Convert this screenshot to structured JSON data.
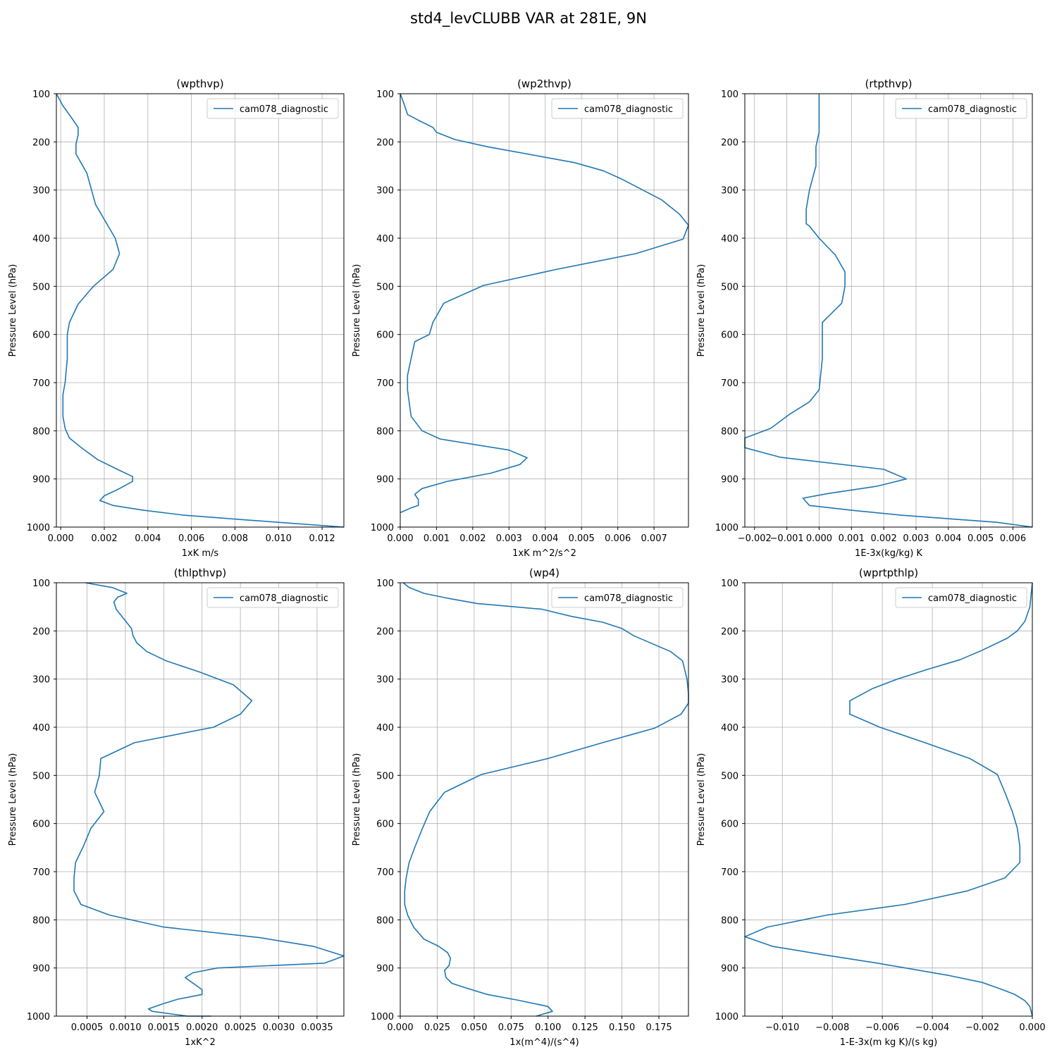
{
  "figure_title": "std4_levCLUBB VAR at 281E, 9N",
  "colors": {
    "series": "#1f77b4",
    "grid": "#b0b0b0",
    "axes": "#000000"
  },
  "chart_data": [
    {
      "type": "line",
      "title": "(wpthvp)",
      "xlabel": "1xK m/s",
      "ylabel": "Pressure Level (hPa)",
      "xlim": [
        -0.0002,
        0.013
      ],
      "ylim": [
        1000,
        100
      ],
      "y_inverted": true,
      "xticks": [
        0,
        0.002,
        0.004,
        0.006,
        0.008,
        0.01,
        0.012
      ],
      "xtick_labels": [
        "0.000",
        "0.002",
        "0.004",
        "0.006",
        "0.008",
        "0.010",
        "0.012"
      ],
      "yticks": [
        100,
        200,
        300,
        400,
        500,
        600,
        700,
        800,
        900,
        1000
      ],
      "ytick_labels": [
        "100",
        "200",
        "300",
        "400",
        "500",
        "600",
        "700",
        "800",
        "900",
        "1000"
      ],
      "grid": true,
      "legend_position": "upper right",
      "series": [
        {
          "name": "cam078_diagnostic",
          "x": [
            -0.0002,
            0.0001,
            0.0005,
            0.0008,
            0.0008,
            0.0007,
            0.0007,
            0.0012,
            0.0016,
            0.0025,
            0.0027,
            0.0024,
            0.0015,
            0.0008,
            0.0004,
            0.0003,
            0.0003,
            0.0002,
            0.0001,
            0.0001,
            0.0002,
            0.0004,
            0.001,
            0.0017,
            0.0026,
            0.0033,
            0.0033,
            0.0027,
            0.002,
            0.0018,
            0.0024,
            0.0038,
            0.0056,
            0.0085,
            0.013
          ],
          "y": [
            100,
            125,
            150,
            170,
            185,
            205,
            225,
            265,
            330,
            400,
            432,
            465,
            500,
            537,
            575,
            600,
            650,
            700,
            725,
            770,
            795,
            815,
            837,
            860,
            880,
            895,
            905,
            920,
            935,
            945,
            955,
            965,
            975,
            985,
            1000
          ]
        }
      ]
    },
    {
      "type": "line",
      "title": "(wp2thvp)",
      "xlabel": "1xK m^2/s^2",
      "ylabel": "Pressure Level (hPa)",
      "xlim": [
        0,
        0.00795
      ],
      "ylim": [
        1000,
        100
      ],
      "y_inverted": true,
      "xticks": [
        0,
        0.001,
        0.002,
        0.003,
        0.004,
        0.005,
        0.006,
        0.007
      ],
      "xtick_labels": [
        "0.000",
        "0.001",
        "0.002",
        "0.003",
        "0.004",
        "0.005",
        "0.006",
        "0.007"
      ],
      "yticks": [
        100,
        200,
        300,
        400,
        500,
        600,
        700,
        800,
        900,
        1000
      ],
      "ytick_labels": [
        "100",
        "200",
        "300",
        "400",
        "500",
        "600",
        "700",
        "800",
        "900",
        "1000"
      ],
      "grid": true,
      "legend_position": "upper right",
      "series": [
        {
          "name": "cam078_diagnostic",
          "x": [
            0,
            0.0001,
            0.0002,
            0.0005,
            0.0009,
            0.001,
            0.0015,
            0.0024,
            0.0048,
            0.0056,
            0.0061,
            0.0072,
            0.0077,
            0.00795,
            0.0078,
            0.0065,
            0.0043,
            0.0023,
            0.0012,
            0.0009,
            0.0008,
            0.0004,
            0.0003,
            0.0002,
            0.0002,
            0.0003,
            0.0006,
            0.0011,
            0.003,
            0.0035,
            0.0033,
            0.0025,
            0.0013,
            0.0006,
            0.0004,
            0.0005,
            0.0005,
            0.0003,
            0
          ],
          "y": [
            100,
            120,
            143,
            155,
            170,
            180,
            195,
            210,
            243,
            260,
            277,
            320,
            350,
            373,
            402,
            432,
            465,
            498,
            535,
            575,
            600,
            615,
            650,
            685,
            715,
            770,
            800,
            817,
            840,
            856,
            870,
            888,
            905,
            920,
            932,
            943,
            955,
            960,
            970
          ]
        }
      ]
    },
    {
      "type": "line",
      "title": "(rtpthvp)",
      "xlabel": "1E-3x(kg/kg) K",
      "ylabel": "Pressure Level (hPa)",
      "xlim": [
        -0.0023,
        0.0066
      ],
      "ylim": [
        1000,
        100
      ],
      "y_inverted": true,
      "xticks": [
        -0.002,
        -0.001,
        0,
        0.001,
        0.002,
        0.003,
        0.004,
        0.005,
        0.006
      ],
      "xtick_labels": [
        "−0.002",
        "−0.001",
        "0.000",
        "0.001",
        "0.002",
        "0.003",
        "0.004",
        "0.005",
        "0.006"
      ],
      "yticks": [
        100,
        200,
        300,
        400,
        500,
        600,
        700,
        800,
        900,
        1000
      ],
      "ytick_labels": [
        "100",
        "200",
        "300",
        "400",
        "500",
        "600",
        "700",
        "800",
        "900",
        "1000"
      ],
      "grid": true,
      "legend_position": "upper right",
      "series": [
        {
          "name": "cam078_diagnostic",
          "x": [
            0.0,
            0.0,
            0.0,
            -0.0001,
            -0.0001,
            -0.0003,
            -0.0004,
            -0.0004,
            -0.0003,
            0.0,
            0.0005,
            0.0008,
            0.0008,
            0.0007,
            0.0001,
            0.0001,
            0.0,
            -0.0003,
            -0.0009,
            -0.0015,
            -0.0023,
            -0.0023,
            -0.0012,
            0.002,
            0.0027,
            0.0018,
            0.0003,
            -0.0005,
            -0.0003,
            0.001,
            0.0025,
            0.0045,
            0.0055,
            0.0066
          ],
          "y": [
            100,
            140,
            180,
            210,
            250,
            300,
            340,
            370,
            375,
            400,
            435,
            470,
            500,
            535,
            575,
            650,
            715,
            740,
            765,
            795,
            815,
            835,
            855,
            880,
            900,
            915,
            930,
            940,
            955,
            965,
            975,
            985,
            990,
            1000
          ]
        }
      ]
    },
    {
      "type": "line",
      "title": "(thlpthvp)",
      "xlabel": "1xK^2",
      "ylabel": "Pressure Level (hPa)",
      "xlim": [
        0.0001,
        0.00385
      ],
      "ylim": [
        1000,
        100
      ],
      "y_inverted": true,
      "xticks": [
        0.0005,
        0.001,
        0.0015,
        0.002,
        0.0025,
        0.003,
        0.0035
      ],
      "xtick_labels": [
        "0.0005",
        "0.0010",
        "0.0015",
        "0.0020",
        "0.0025",
        "0.0030",
        "0.0035"
      ],
      "yticks": [
        100,
        200,
        300,
        400,
        500,
        600,
        700,
        800,
        900,
        1000
      ],
      "ytick_labels": [
        "100",
        "200",
        "300",
        "400",
        "500",
        "600",
        "700",
        "800",
        "900",
        "1000"
      ],
      "grid": true,
      "legend_position": "upper right",
      "series": [
        {
          "name": "cam078_diagnostic",
          "x": [
            0.00048,
            0.00083,
            0.00102,
            0.0009,
            0.00085,
            0.00088,
            0.00098,
            0.00108,
            0.0011,
            0.00115,
            0.00128,
            0.00153,
            0.00196,
            0.00241,
            0.00265,
            0.0025,
            0.00215,
            0.00112,
            0.00068,
            0.00066,
            0.0006,
            0.00072,
            0.00055,
            0.00045,
            0.00035,
            0.00033,
            0.00033,
            0.00042,
            0.00079,
            0.0015,
            0.00275,
            0.00345,
            0.00385,
            0.0036,
            0.0022,
            0.00188,
            0.00178,
            0.002,
            0.002,
            0.00168,
            0.00148,
            0.0013,
            0.00135,
            0.00181,
            0.00212
          ],
          "y": [
            100,
            110,
            122,
            130,
            140,
            155,
            175,
            195,
            210,
            225,
            243,
            262,
            285,
            312,
            345,
            373,
            400,
            432,
            465,
            500,
            535,
            575,
            610,
            648,
            681,
            713,
            740,
            768,
            790,
            815,
            837,
            855,
            875,
            890,
            900,
            910,
            920,
            945,
            955,
            965,
            975,
            985,
            990,
            1000,
            1000
          ]
        }
      ]
    },
    {
      "type": "line",
      "title": "(wp4)",
      "xlabel": "1x(m^4)/(s^4)",
      "ylabel": "Pressure Level (hPa)",
      "xlim": [
        0,
        0.195
      ],
      "ylim": [
        1000,
        100
      ],
      "y_inverted": true,
      "xticks": [
        0,
        0.025,
        0.05,
        0.075,
        0.1,
        0.125,
        0.15,
        0.175
      ],
      "xtick_labels": [
        "0.000",
        "0.025",
        "0.050",
        "0.075",
        "0.100",
        "0.125",
        "0.150",
        "0.175"
      ],
      "yticks": [
        100,
        200,
        300,
        400,
        500,
        600,
        700,
        800,
        900,
        1000
      ],
      "ytick_labels": [
        "100",
        "200",
        "300",
        "400",
        "500",
        "600",
        "700",
        "800",
        "900",
        "1000"
      ],
      "grid": true,
      "legend_position": "upper right",
      "series": [
        {
          "name": "cam078_diagnostic",
          "x": [
            0.002,
            0.006,
            0.016,
            0.032,
            0.052,
            0.096,
            0.116,
            0.137,
            0.15,
            0.158,
            0.183,
            0.191,
            0.194,
            0.195,
            0.195,
            0.19,
            0.172,
            0.137,
            0.1,
            0.055,
            0.03,
            0.02,
            0.015,
            0.01,
            0.006,
            0.004,
            0.003,
            0.003,
            0.005,
            0.009,
            0.016,
            0.026,
            0.032,
            0.034,
            0.033,
            0.03,
            0.031,
            0.035,
            0.045,
            0.059,
            0.08,
            0.1,
            0.103,
            0.092
          ],
          "y": [
            100,
            110,
            122,
            132,
            143,
            155,
            170,
            182,
            195,
            210,
            243,
            262,
            300,
            330,
            350,
            373,
            402,
            432,
            465,
            498,
            535,
            575,
            610,
            648,
            681,
            713,
            740,
            768,
            790,
            815,
            840,
            855,
            868,
            880,
            895,
            905,
            920,
            932,
            942,
            955,
            967,
            980,
            990,
            1000
          ]
        }
      ]
    },
    {
      "type": "line",
      "title": "(wprtpthlp)",
      "xlabel": "1-E-3x(m kg K)/(s kg)",
      "ylabel": "Pressure Level (hPa)",
      "xlim": [
        -0.0115,
        0
      ],
      "ylim": [
        1000,
        100
      ],
      "y_inverted": true,
      "xticks": [
        -0.01,
        -0.008,
        -0.006,
        -0.004,
        -0.002,
        0
      ],
      "xtick_labels": [
        "−0.010",
        "−0.008",
        "−0.006",
        "−0.004",
        "−0.002",
        "0.000"
      ],
      "yticks": [
        100,
        200,
        300,
        400,
        500,
        600,
        700,
        800,
        900,
        1000
      ],
      "ytick_labels": [
        "100",
        "200",
        "300",
        "400",
        "500",
        "600",
        "700",
        "800",
        "900",
        "1000"
      ],
      "grid": true,
      "legend_position": "upper right",
      "series": [
        {
          "name": "cam078_diagnostic",
          "x": [
            0,
            -0.0001,
            -0.0003,
            -0.0006,
            -0.001,
            -0.002,
            -0.0029,
            -0.0042,
            -0.0054,
            -0.0064,
            -0.0073,
            -0.0073,
            -0.0061,
            -0.0043,
            -0.0025,
            -0.0014,
            -0.0011,
            -0.0008,
            -0.0006,
            -0.0005,
            -0.0005,
            -0.0011,
            -0.0026,
            -0.0051,
            -0.0082,
            -0.0106,
            -0.0115,
            -0.0104,
            -0.0083,
            -0.0062,
            -0.0034,
            -0.002,
            -0.0012,
            -0.0007,
            -0.0003,
            -0.0001,
            0
          ],
          "y": [
            100,
            150,
            180,
            200,
            215,
            240,
            260,
            280,
            300,
            320,
            345,
            373,
            400,
            432,
            465,
            498,
            535,
            575,
            610,
            648,
            681,
            713,
            740,
            768,
            790,
            815,
            835,
            855,
            873,
            890,
            915,
            930,
            945,
            955,
            968,
            980,
            1000
          ]
        }
      ]
    }
  ]
}
